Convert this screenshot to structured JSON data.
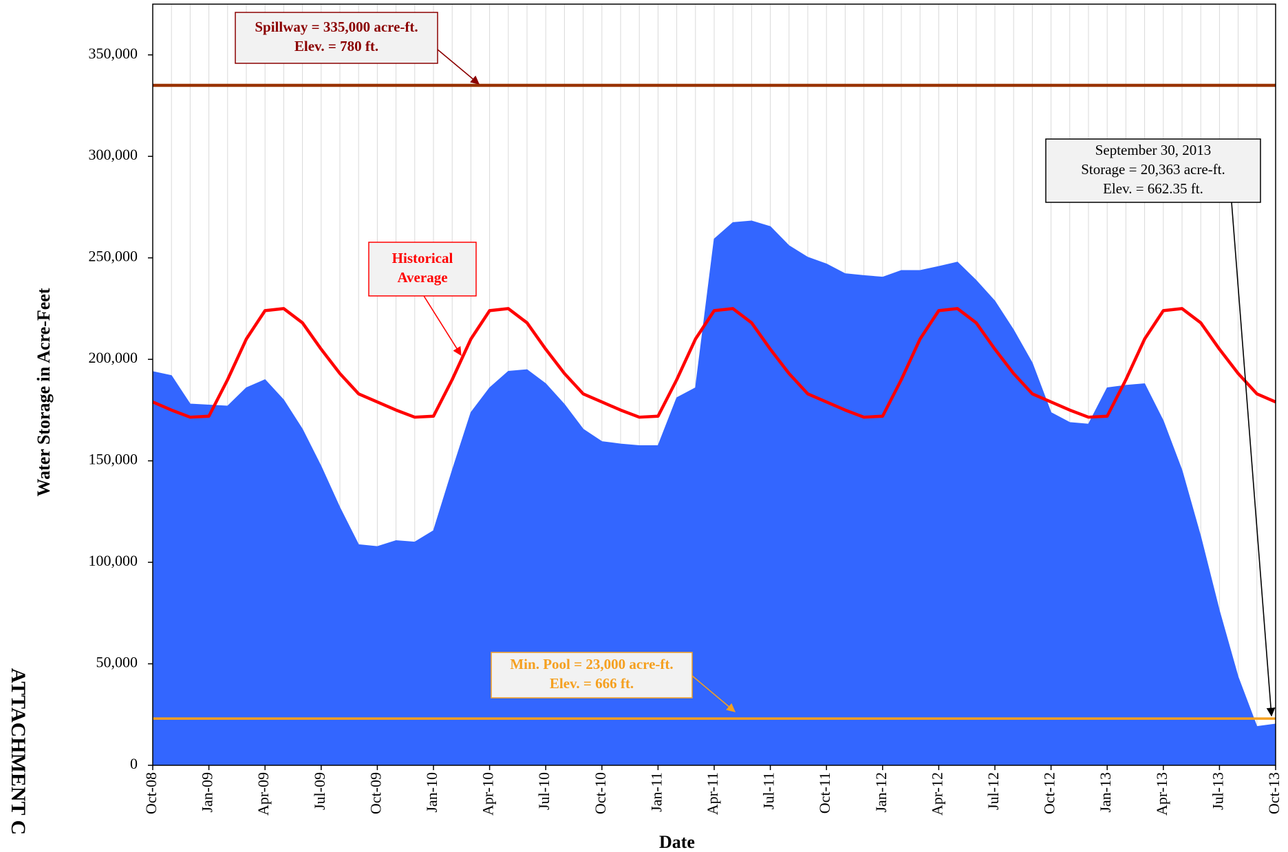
{
  "chart_data": {
    "type": "area",
    "y_axis_label": "Water Storage in Acre-Feet",
    "x_axis_label": "Date",
    "side_label": "ATTACHMENT C",
    "x": [
      "Oct-08",
      "Nov-08",
      "Dec-08",
      "Jan-09",
      "Feb-09",
      "Mar-09",
      "Apr-09",
      "May-09",
      "Jun-09",
      "Jul-09",
      "Aug-09",
      "Sep-09",
      "Oct-09",
      "Nov-09",
      "Dec-09",
      "Jan-10",
      "Feb-10",
      "Mar-10",
      "Apr-10",
      "May-10",
      "Jun-10",
      "Jul-10",
      "Aug-10",
      "Sep-10",
      "Oct-10",
      "Nov-10",
      "Dec-10",
      "Jan-11",
      "Feb-11",
      "Mar-11",
      "Apr-11",
      "May-11",
      "Jun-11",
      "Jul-11",
      "Aug-11",
      "Sep-11",
      "Oct-11",
      "Nov-11",
      "Dec-11",
      "Jan-12",
      "Feb-12",
      "Mar-12",
      "Apr-12",
      "May-12",
      "Jun-12",
      "Jul-12",
      "Aug-12",
      "Sep-12",
      "Oct-12",
      "Nov-12",
      "Dec-12",
      "Jan-13",
      "Feb-13",
      "Mar-13",
      "Apr-13",
      "May-13",
      "Jun-13",
      "Jul-13",
      "Aug-13",
      "Sep-13",
      "Oct-13"
    ],
    "series": [
      {
        "name": "Storage",
        "color": "#3366ff",
        "kind": "area",
        "values": [
          194000,
          192000,
          178000,
          177500,
          177000,
          186000,
          190000,
          180000,
          165600,
          147300,
          127000,
          108700,
          107800,
          110700,
          110000,
          115600,
          145300,
          173800,
          186000,
          194100,
          194900,
          188000,
          177800,
          165600,
          159500,
          158300,
          157500,
          157500,
          181100,
          186000,
          259300,
          267400,
          268200,
          265400,
          256000,
          250300,
          247000,
          242200,
          241300,
          240500,
          243800,
          243800,
          245800,
          247900,
          238900,
          228700,
          214500,
          198200,
          173800,
          168900,
          168100,
          186000,
          187200,
          188000,
          169700,
          145300,
          112700,
          76100,
          43500,
          19100,
          20363
        ]
      },
      {
        "name": "Historical Average",
        "color": "#ff0000",
        "kind": "line",
        "values": [
          179000,
          175000,
          171500,
          172000,
          190000,
          210000,
          224000,
          225000,
          218000,
          205000,
          193000,
          183000,
          179000,
          175000,
          171500,
          172000,
          190000,
          210000,
          224000,
          225000,
          218000,
          205000,
          193000,
          183000,
          179000,
          175000,
          171500,
          172000,
          190000,
          210000,
          224000,
          225000,
          218000,
          205000,
          193000,
          183000,
          179000,
          175000,
          171500,
          172000,
          190000,
          210000,
          224000,
          225000,
          218000,
          205000,
          193000,
          183000,
          179000,
          175000,
          171500,
          172000,
          190000,
          210000,
          224000,
          225000,
          218000,
          205000,
          193000,
          183000,
          179000
        ]
      }
    ],
    "reference_lines": [
      {
        "value": 335000,
        "color": "#993300"
      },
      {
        "value": 23000,
        "color": "#f5a020"
      }
    ],
    "annotations": [
      {
        "lines": [
          "Spillway = 335,000 acre-ft.",
          "Elev. = 780 ft."
        ],
        "color": "#8b0000",
        "border": "#8b0000"
      },
      {
        "lines": [
          "Historical",
          "Average"
        ],
        "color": "#ff0000",
        "border": "#ff0000"
      },
      {
        "lines": [
          "Min. Pool = 23,000 acre-ft.",
          "Elev. = 666 ft."
        ],
        "color": "#f5a020",
        "border": "#f5a020"
      },
      {
        "lines": [
          "September 30, 2013",
          "Storage =  20,363 acre-ft.",
          "Elev. =  662.35 ft."
        ],
        "color": "#000000",
        "border": "#000000"
      }
    ],
    "xlim": [
      "Oct-08",
      "Oct-13"
    ],
    "xticks": [
      "Oct-08",
      "Jan-09",
      "Apr-09",
      "Jul-09",
      "Oct-09",
      "Jan-10",
      "Apr-10",
      "Jul-10",
      "Oct-10",
      "Jan-11",
      "Apr-11",
      "Jul-11",
      "Oct-11",
      "Jan-12",
      "Apr-12",
      "Jul-12",
      "Oct-12",
      "Jan-13",
      "Apr-13",
      "Jul-13",
      "Oct-13"
    ],
    "ylim": [
      0,
      375000
    ],
    "yticks": [
      0,
      {
        "value": 50000,
        "label": "50,000"
      },
      {
        "value": 100000,
        "label": "100,000"
      },
      {
        "value": 150000,
        "label": "150,000"
      },
      {
        "value": 200000,
        "label": "200,000"
      },
      {
        "value": 250000,
        "label": "250,000"
      },
      {
        "value": 300000,
        "label": "300,000"
      },
      {
        "value": 350000,
        "label": "350,000"
      }
    ],
    "grid": true
  }
}
